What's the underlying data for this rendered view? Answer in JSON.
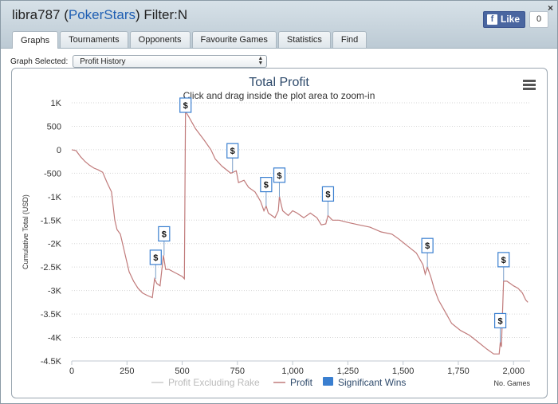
{
  "window": {
    "title_user": "libra787",
    "title_site": "PokerStars",
    "title_filter": "Filter:N",
    "close_label": "×"
  },
  "facebook": {
    "like_label": "Like",
    "f_glyph": "f",
    "count": "0"
  },
  "tabs": [
    {
      "label": "Graphs",
      "active": true
    },
    {
      "label": "Tournaments"
    },
    {
      "label": "Opponents"
    },
    {
      "label": "Favourite Games"
    },
    {
      "label": "Statistics"
    },
    {
      "label": "Find"
    }
  ],
  "graph_selector": {
    "label": "Graph Selected:",
    "value": "Profit History",
    "arrows": "▲▼"
  },
  "colors": {
    "profit": "#c07a7a",
    "excluding_rake": "#cccccc",
    "sig_win": "#3a7fd0",
    "grid": "#d6d6d6",
    "title": "#2e4a6b"
  },
  "menu_icon": "hamburger-menu-icon",
  "chart_data": {
    "type": "line",
    "title": "Total Profit",
    "subtitle": "Click and drag inside the plot area to zoom-in",
    "xlabel": "No. Games",
    "ylabel": "Cumulative Total (USD)",
    "xlim": [
      0,
      2075
    ],
    "ylim": [
      -4500,
      1000
    ],
    "x_ticks": [
      0,
      250,
      500,
      750,
      1000,
      1250,
      1500,
      1750,
      2000
    ],
    "x_tick_labels": [
      "0",
      "250",
      "500",
      "750",
      "1,000",
      "1,250",
      "1,500",
      "1,750",
      "2,000"
    ],
    "y_ticks": [
      1000,
      500,
      0,
      -500,
      -1000,
      -1500,
      -2000,
      -2500,
      -3000,
      -3500,
      -4000,
      -4500
    ],
    "y_tick_labels": [
      "1K",
      "500",
      "0",
      "-500",
      "-1K",
      "-1.5K",
      "-2K",
      "-2.5K",
      "-3K",
      "-3.5K",
      "-4K",
      "-4.5K"
    ],
    "legend": [
      {
        "name": "Profit Excluding Rake",
        "type": "line",
        "color": "#cccccc"
      },
      {
        "name": "Profit",
        "type": "line",
        "color": "#c07a7a"
      },
      {
        "name": "Significant Wins",
        "type": "box",
        "color": "#3a7fd0"
      }
    ],
    "series": [
      {
        "name": "Profit",
        "points": [
          [
            0,
            0
          ],
          [
            20,
            -20
          ],
          [
            40,
            -150
          ],
          [
            60,
            -250
          ],
          [
            80,
            -330
          ],
          [
            100,
            -390
          ],
          [
            120,
            -430
          ],
          [
            140,
            -480
          ],
          [
            160,
            -700
          ],
          [
            180,
            -900
          ],
          [
            195,
            -1500
          ],
          [
            205,
            -1700
          ],
          [
            220,
            -1800
          ],
          [
            240,
            -2200
          ],
          [
            260,
            -2600
          ],
          [
            280,
            -2800
          ],
          [
            300,
            -2950
          ],
          [
            320,
            -3050
          ],
          [
            340,
            -3100
          ],
          [
            365,
            -3150
          ],
          [
            375,
            -2750
          ],
          [
            385,
            -2850
          ],
          [
            400,
            -2900
          ],
          [
            415,
            -2250
          ],
          [
            425,
            -2550
          ],
          [
            440,
            -2550
          ],
          [
            460,
            -2600
          ],
          [
            480,
            -2650
          ],
          [
            500,
            -2700
          ],
          [
            510,
            -2750
          ],
          [
            515,
            820
          ],
          [
            530,
            700
          ],
          [
            560,
            450
          ],
          [
            600,
            200
          ],
          [
            630,
            0
          ],
          [
            650,
            -200
          ],
          [
            680,
            -350
          ],
          [
            720,
            -500
          ],
          [
            745,
            -450
          ],
          [
            755,
            -700
          ],
          [
            780,
            -650
          ],
          [
            800,
            -800
          ],
          [
            830,
            -900
          ],
          [
            855,
            -1100
          ],
          [
            870,
            -1300
          ],
          [
            880,
            -1200
          ],
          [
            890,
            -1350
          ],
          [
            920,
            -1450
          ],
          [
            935,
            -1300
          ],
          [
            940,
            -1000
          ],
          [
            955,
            -1300
          ],
          [
            980,
            -1400
          ],
          [
            1000,
            -1300
          ],
          [
            1020,
            -1350
          ],
          [
            1050,
            -1450
          ],
          [
            1080,
            -1350
          ],
          [
            1110,
            -1450
          ],
          [
            1130,
            -1600
          ],
          [
            1150,
            -1580
          ],
          [
            1160,
            -1400
          ],
          [
            1180,
            -1500
          ],
          [
            1210,
            -1500
          ],
          [
            1250,
            -1550
          ],
          [
            1300,
            -1600
          ],
          [
            1350,
            -1650
          ],
          [
            1400,
            -1750
          ],
          [
            1450,
            -1800
          ],
          [
            1480,
            -1900
          ],
          [
            1520,
            -2050
          ],
          [
            1560,
            -2200
          ],
          [
            1590,
            -2450
          ],
          [
            1600,
            -2650
          ],
          [
            1610,
            -2500
          ],
          [
            1625,
            -2700
          ],
          [
            1640,
            -2950
          ],
          [
            1660,
            -3200
          ],
          [
            1690,
            -3450
          ],
          [
            1720,
            -3700
          ],
          [
            1760,
            -3850
          ],
          [
            1800,
            -3950
          ],
          [
            1840,
            -4100
          ],
          [
            1880,
            -4250
          ],
          [
            1910,
            -4350
          ],
          [
            1935,
            -4350
          ],
          [
            1940,
            -4100
          ],
          [
            1945,
            -4200
          ],
          [
            1955,
            -2800
          ],
          [
            1970,
            -2800
          ],
          [
            1985,
            -2850
          ],
          [
            2000,
            -2900
          ],
          [
            2020,
            -2950
          ],
          [
            2040,
            -3050
          ],
          [
            2055,
            -3200
          ],
          [
            2065,
            -3250
          ]
        ]
      }
    ],
    "significant_wins": [
      {
        "label": "$",
        "x": 380,
        "y": -2750
      },
      {
        "label": "$",
        "x": 418,
        "y": -2250
      },
      {
        "label": "$",
        "x": 515,
        "y": 820
      },
      {
        "label": "$",
        "x": 728,
        "y": -480
      },
      {
        "label": "$",
        "x": 880,
        "y": -1200
      },
      {
        "label": "$",
        "x": 940,
        "y": -1000
      },
      {
        "label": "$",
        "x": 1160,
        "y": -1400
      },
      {
        "label": "$",
        "x": 1610,
        "y": -2500
      },
      {
        "label": "$",
        "x": 1940,
        "y": -4100
      },
      {
        "label": "$",
        "x": 1955,
        "y": -2800
      }
    ]
  }
}
